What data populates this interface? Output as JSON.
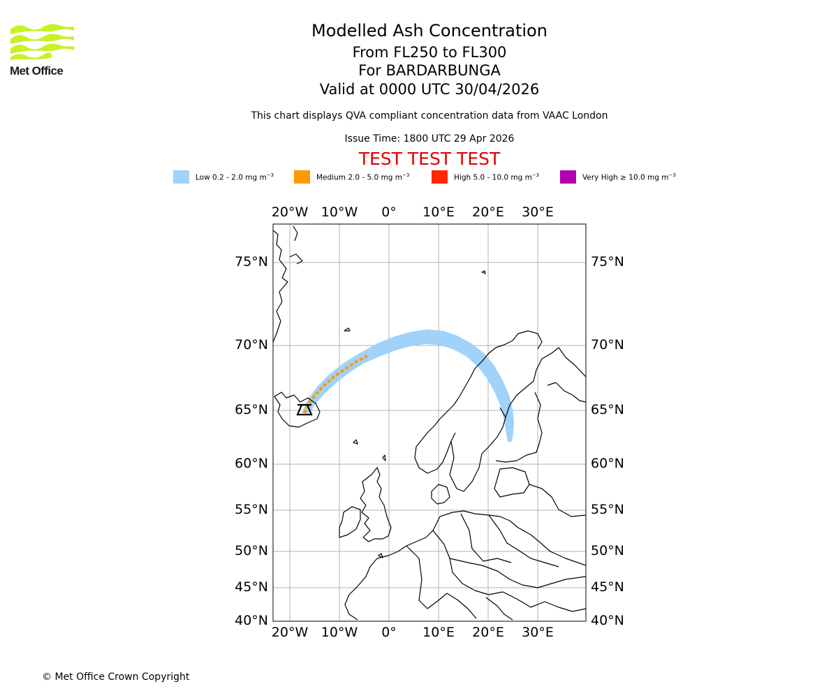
{
  "logo": {
    "text": "Met Office",
    "color": "#c6f227"
  },
  "title": {
    "main": "Modelled Ash Concentration",
    "levels": "From FL250 to FL300",
    "volcano": "For BARDARBUNGA",
    "valid": "Valid at 0000 UTC 30/04/2026",
    "description": "This chart displays QVA compliant concentration data from VAAC London",
    "issue": "Issue Time: 1800 UTC 29 Apr 2026",
    "test_banner": "TEST TEST TEST"
  },
  "legend": [
    {
      "label": "Low 0.2 - 2.0 mg m",
      "exp": "−3",
      "color": "#a0d2fa"
    },
    {
      "label": "Medium 2.0 - 5.0 mg m",
      "exp": "−3",
      "color": "#ff9900"
    },
    {
      "label": "High 5.0 - 10.0 mg m",
      "exp": "−3",
      "color": "#ff2800"
    },
    {
      "label": "Very High  ≥  10.0 mg m",
      "exp": "−3",
      "color": "#b000b0"
    }
  ],
  "map": {
    "lon_labels": [
      "20°W",
      "10°W",
      "0°",
      "10°E",
      "20°E",
      "30°E"
    ],
    "lat_labels": [
      "75°N",
      "70°N",
      "65°N",
      "60°N",
      "55°N",
      "50°N",
      "45°N",
      "40°N"
    ],
    "volcano_marker": "BARDARBUNGA"
  },
  "copyright": "© Met Office Crown Copyright"
}
